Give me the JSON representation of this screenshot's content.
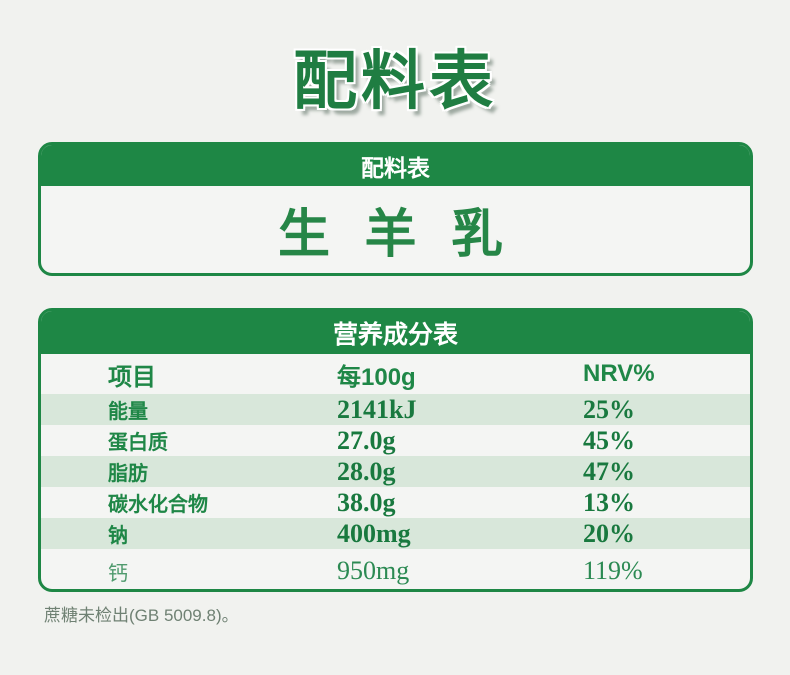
{
  "title": "配料表",
  "ingredients": {
    "header": "配料表",
    "content": "生 羊 乳"
  },
  "nutrition": {
    "header": "营养成分表",
    "columns": [
      "项目",
      "每100g",
      "NRV%"
    ],
    "rows": [
      {
        "name": "能量",
        "per": "2141kJ",
        "nrv": "25%"
      },
      {
        "name": "蛋白质",
        "per": "27.0g",
        "nrv": "45%"
      },
      {
        "name": "脂肪",
        "per": "28.0g",
        "nrv": "47%"
      },
      {
        "name": "碳水化合物",
        "per": "38.0g",
        "nrv": "13%"
      },
      {
        "name": "钠",
        "per": "400mg",
        "nrv": "20%"
      },
      {
        "name": "钙",
        "per": "950mg",
        "nrv": "119%"
      }
    ]
  },
  "footnote": "蔗糖未检出(GB 5009.8)。",
  "colors": {
    "primary_green": "#1e8745",
    "title_green": "#1f7d42",
    "value_green": "#19793f",
    "stripe_green": "#d8e7da",
    "page_bg": "#f1f2ef",
    "card_bg": "#f4f5f3",
    "footnote_gray": "#6f8173"
  }
}
